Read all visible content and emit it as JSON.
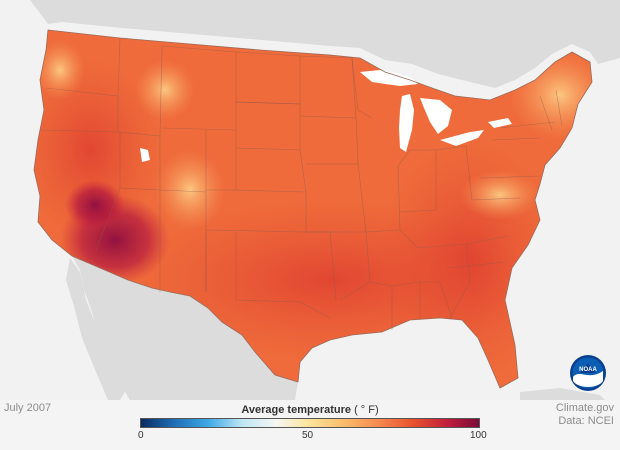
{
  "map": {
    "date_label": "July 2007",
    "credit": "Climate.gov",
    "data_source": "Data: NCEI",
    "legend": {
      "title": "Average temperature",
      "unit": "( ° F)",
      "min_label": "0",
      "mid_label": "50",
      "max_label": "100",
      "stops": [
        "#0b2a60",
        "#1f6fb8",
        "#3fa9e6",
        "#bfe6f5",
        "#f7f7f2",
        "#fde39a",
        "#fbbd6a",
        "#f68a50",
        "#e9542e",
        "#c5213a",
        "#7a0b3a"
      ]
    },
    "logo": {
      "icon": "noaa-logo-icon",
      "text": "NOAA"
    },
    "colors": {
      "land_base": "#ef6b3b",
      "land_hot": "#b11a43",
      "land_cool": "#fbb66a",
      "water": "#ffffff",
      "surrounding_land": "#dcdcdc",
      "state_lines": "#8d5a4a"
    }
  }
}
